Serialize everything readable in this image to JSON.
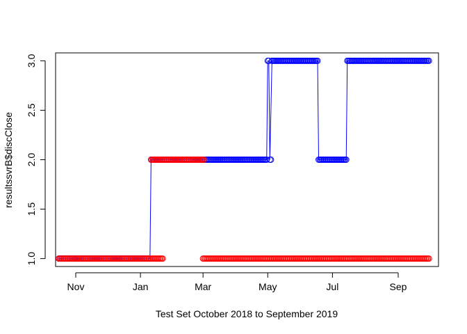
{
  "chart_data": {
    "type": "scatter",
    "xlabel": "Test Set October 2018 to September 2019",
    "ylabel": "resultssvrB$discClose",
    "x_ticks": [
      "Nov",
      "Jan",
      "Mar",
      "May",
      "Jul",
      "Sep"
    ],
    "x_tick_dates": [
      "2018-11-01",
      "2019-01-01",
      "2019-03-01",
      "2019-05-01",
      "2019-07-01",
      "2019-09-01"
    ],
    "xlim": [
      "2018-10-13",
      "2019-10-09"
    ],
    "y_ticks": [
      "1.0",
      "1.5",
      "2.0",
      "2.5",
      "3.0"
    ],
    "ylim": [
      0.92,
      3.08
    ],
    "grid": false,
    "legend": "none",
    "colors": {
      "actual": "#0000ff",
      "predicted": "#ff0000",
      "axis": "#000000"
    },
    "series": [
      {
        "color": "#0000ff",
        "style": "line+open-circles",
        "points": [
          [
            "2018-10-16",
            1
          ],
          [
            "2019-01-10",
            1
          ],
          [
            "2019-01-11",
            2
          ],
          [
            "2019-04-30",
            2
          ],
          [
            "2019-05-01",
            3
          ],
          [
            "2019-05-02",
            3
          ],
          [
            "2019-05-03",
            2
          ],
          [
            "2019-05-05",
            3
          ],
          [
            "2019-06-17",
            3
          ],
          [
            "2019-06-18",
            2
          ],
          [
            "2019-07-14",
            2
          ],
          [
            "2019-07-15",
            3
          ],
          [
            "2019-09-30",
            3
          ]
        ]
      },
      {
        "color": "#ff0000",
        "style": "open-circles",
        "segments": [
          {
            "value": 1,
            "from": "2018-10-16",
            "to": "2019-01-08"
          },
          {
            "value": 1,
            "from": "2019-01-09",
            "to": "2019-01-22"
          },
          {
            "value": 2,
            "from": "2019-01-11",
            "to": "2019-03-02"
          },
          {
            "value": 1,
            "from": "2019-03-01",
            "to": "2019-09-30"
          }
        ]
      }
    ]
  }
}
